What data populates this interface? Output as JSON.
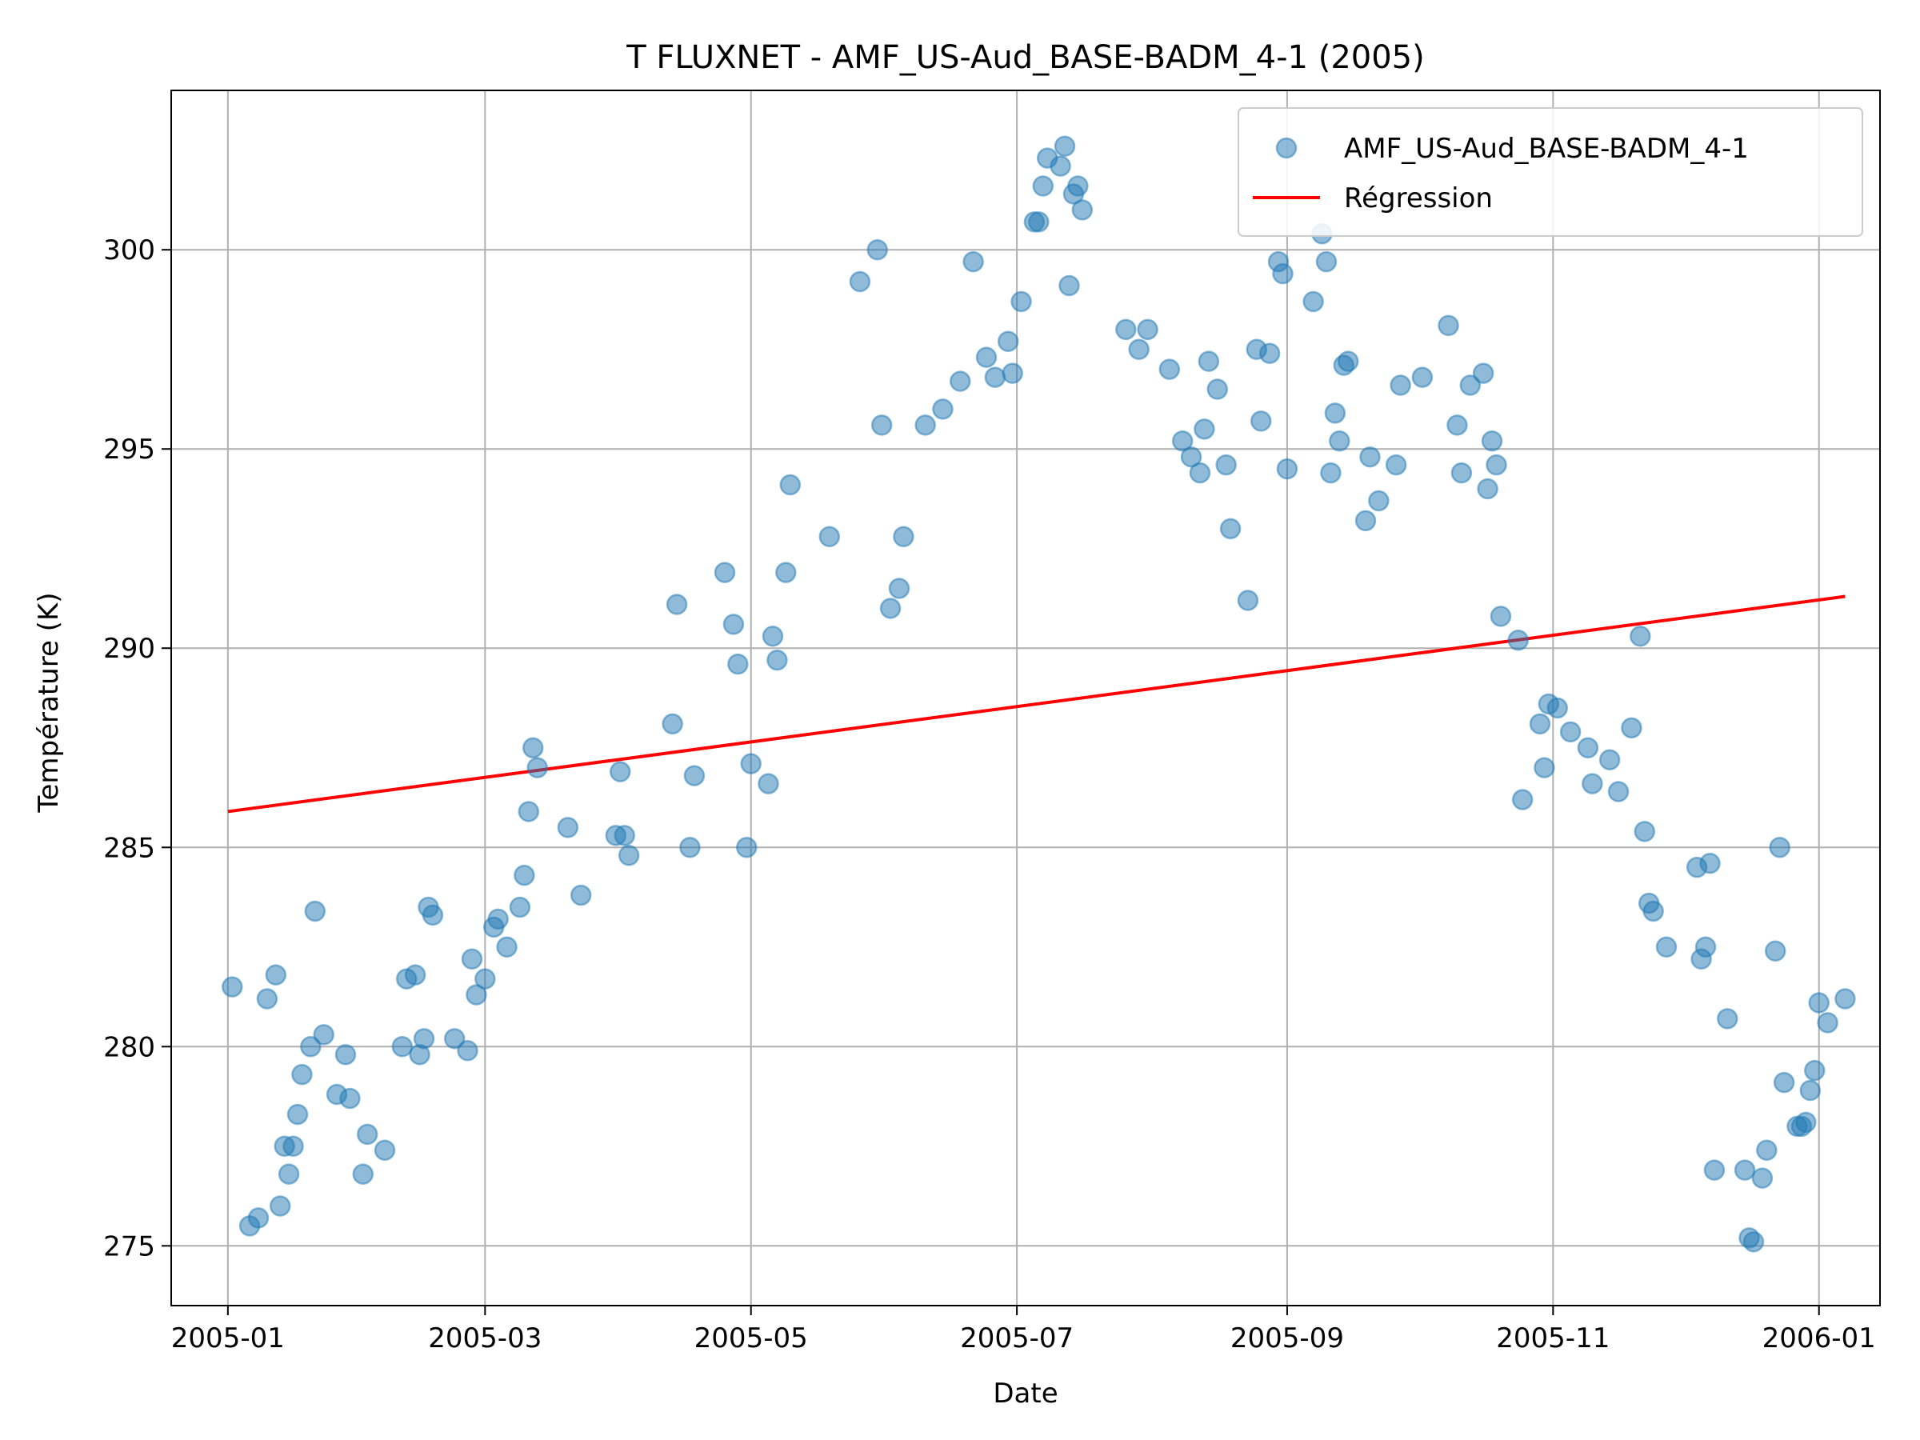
{
  "chart_data": {
    "type": "scatter",
    "title": "T FLUXNET - AMF_US-Aud_BASE-BADM_4-1 (2005)",
    "xlabel": "Date",
    "ylabel": "Température (K)",
    "x_type": "date",
    "xlim": [
      "2004-12-19",
      "2006-01-15"
    ],
    "ylim": [
      273.5,
      304.0
    ],
    "x_ticks": [
      {
        "date": "2005-01-01",
        "label": "2005-01"
      },
      {
        "date": "2005-03-01",
        "label": "2005-03"
      },
      {
        "date": "2005-05-01",
        "label": "2005-05"
      },
      {
        "date": "2005-07-01",
        "label": "2005-07"
      },
      {
        "date": "2005-09-01",
        "label": "2005-09"
      },
      {
        "date": "2005-11-01",
        "label": "2005-11"
      },
      {
        "date": "2006-01-01",
        "label": "2006-01"
      }
    ],
    "y_ticks": [
      275,
      280,
      285,
      290,
      295,
      300
    ],
    "grid": true,
    "legend_position": "top-right",
    "series": [
      {
        "name": "AMF_US-Aud_BASE-BADM_4-1",
        "kind": "scatter",
        "color": "#1f77b4",
        "points": [
          [
            "2005-01-02",
            281.5
          ],
          [
            "2005-01-06",
            275.5
          ],
          [
            "2005-01-08",
            275.7
          ],
          [
            "2005-01-10",
            281.2
          ],
          [
            "2005-01-12",
            281.8
          ],
          [
            "2005-01-13",
            276.0
          ],
          [
            "2005-01-14",
            277.5
          ],
          [
            "2005-01-15",
            276.8
          ],
          [
            "2005-01-16",
            277.5
          ],
          [
            "2005-01-17",
            278.3
          ],
          [
            "2005-01-18",
            279.3
          ],
          [
            "2005-01-20",
            280.0
          ],
          [
            "2005-01-21",
            283.4
          ],
          [
            "2005-01-23",
            280.3
          ],
          [
            "2005-01-26",
            278.8
          ],
          [
            "2005-01-28",
            279.8
          ],
          [
            "2005-01-29",
            278.7
          ],
          [
            "2005-02-01",
            276.8
          ],
          [
            "2005-02-02",
            277.8
          ],
          [
            "2005-02-06",
            277.4
          ],
          [
            "2005-02-10",
            280.0
          ],
          [
            "2005-02-11",
            281.7
          ],
          [
            "2005-02-13",
            281.8
          ],
          [
            "2005-02-14",
            279.8
          ],
          [
            "2005-02-15",
            280.2
          ],
          [
            "2005-02-16",
            283.5
          ],
          [
            "2005-02-17",
            283.3
          ],
          [
            "2005-02-22",
            280.2
          ],
          [
            "2005-02-25",
            279.9
          ],
          [
            "2005-02-26",
            282.2
          ],
          [
            "2005-02-27",
            281.3
          ],
          [
            "2005-03-01",
            281.7
          ],
          [
            "2005-03-03",
            283.0
          ],
          [
            "2005-03-04",
            283.2
          ],
          [
            "2005-03-06",
            282.5
          ],
          [
            "2005-03-09",
            283.5
          ],
          [
            "2005-03-10",
            284.3
          ],
          [
            "2005-03-11",
            285.9
          ],
          [
            "2005-03-12",
            287.5
          ],
          [
            "2005-03-13",
            287.0
          ],
          [
            "2005-03-20",
            285.5
          ],
          [
            "2005-03-23",
            283.8
          ],
          [
            "2005-03-31",
            285.3
          ],
          [
            "2005-04-01",
            286.9
          ],
          [
            "2005-04-02",
            285.3
          ],
          [
            "2005-04-03",
            284.8
          ],
          [
            "2005-04-13",
            288.1
          ],
          [
            "2005-04-14",
            291.1
          ],
          [
            "2005-04-17",
            285.0
          ],
          [
            "2005-04-18",
            286.8
          ],
          [
            "2005-04-25",
            291.9
          ],
          [
            "2005-04-27",
            290.6
          ],
          [
            "2005-04-28",
            289.6
          ],
          [
            "2005-04-30",
            285.0
          ],
          [
            "2005-05-01",
            287.1
          ],
          [
            "2005-05-05",
            286.6
          ],
          [
            "2005-05-06",
            290.3
          ],
          [
            "2005-05-07",
            289.7
          ],
          [
            "2005-05-09",
            291.9
          ],
          [
            "2005-05-10",
            294.1
          ],
          [
            "2005-05-19",
            292.8
          ],
          [
            "2005-05-26",
            299.2
          ],
          [
            "2005-05-30",
            300.0
          ],
          [
            "2005-05-31",
            295.6
          ],
          [
            "2005-06-02",
            291.0
          ],
          [
            "2005-06-04",
            291.5
          ],
          [
            "2005-06-05",
            292.8
          ],
          [
            "2005-06-10",
            295.6
          ],
          [
            "2005-06-14",
            296.0
          ],
          [
            "2005-06-18",
            296.7
          ],
          [
            "2005-06-21",
            299.7
          ],
          [
            "2005-06-24",
            297.3
          ],
          [
            "2005-06-26",
            296.8
          ],
          [
            "2005-06-29",
            297.7
          ],
          [
            "2005-06-30",
            296.9
          ],
          [
            "2005-07-02",
            298.7
          ],
          [
            "2005-07-05",
            300.7
          ],
          [
            "2005-07-06",
            300.7
          ],
          [
            "2005-07-07",
            301.6
          ],
          [
            "2005-07-08",
            302.3
          ],
          [
            "2005-07-11",
            302.1
          ],
          [
            "2005-07-12",
            302.6
          ],
          [
            "2005-07-13",
            299.1
          ],
          [
            "2005-07-14",
            301.4
          ],
          [
            "2005-07-15",
            301.6
          ],
          [
            "2005-07-16",
            301.0
          ],
          [
            "2005-07-26",
            298.0
          ],
          [
            "2005-07-29",
            297.5
          ],
          [
            "2005-07-31",
            298.0
          ],
          [
            "2005-08-05",
            297.0
          ],
          [
            "2005-08-08",
            295.2
          ],
          [
            "2005-08-10",
            294.8
          ],
          [
            "2005-08-12",
            294.4
          ],
          [
            "2005-08-13",
            295.5
          ],
          [
            "2005-08-14",
            297.2
          ],
          [
            "2005-08-16",
            296.5
          ],
          [
            "2005-08-18",
            294.6
          ],
          [
            "2005-08-19",
            293.0
          ],
          [
            "2005-08-23",
            291.2
          ],
          [
            "2005-08-25",
            297.5
          ],
          [
            "2005-08-26",
            295.7
          ],
          [
            "2005-08-28",
            297.4
          ],
          [
            "2005-08-30",
            299.7
          ],
          [
            "2005-08-31",
            299.4
          ],
          [
            "2005-09-01",
            294.5
          ],
          [
            "2005-09-07",
            298.7
          ],
          [
            "2005-09-09",
            300.4
          ],
          [
            "2005-09-10",
            299.7
          ],
          [
            "2005-09-11",
            294.4
          ],
          [
            "2005-09-12",
            295.9
          ],
          [
            "2005-09-13",
            295.2
          ],
          [
            "2005-09-14",
            297.1
          ],
          [
            "2005-09-15",
            297.2
          ],
          [
            "2005-09-19",
            293.2
          ],
          [
            "2005-09-20",
            294.8
          ],
          [
            "2005-09-22",
            293.7
          ],
          [
            "2005-09-26",
            294.6
          ],
          [
            "2005-09-27",
            296.6
          ],
          [
            "2005-10-02",
            296.8
          ],
          [
            "2005-10-08",
            298.1
          ],
          [
            "2005-10-10",
            295.6
          ],
          [
            "2005-10-11",
            294.4
          ],
          [
            "2005-10-13",
            296.6
          ],
          [
            "2005-10-16",
            296.9
          ],
          [
            "2005-10-17",
            294.0
          ],
          [
            "2005-10-18",
            295.2
          ],
          [
            "2005-10-19",
            294.6
          ],
          [
            "2005-10-20",
            290.8
          ],
          [
            "2005-10-24",
            290.2
          ],
          [
            "2005-10-25",
            286.2
          ],
          [
            "2005-10-29",
            288.1
          ],
          [
            "2005-10-30",
            287.0
          ],
          [
            "2005-10-31",
            288.6
          ],
          [
            "2005-11-02",
            288.5
          ],
          [
            "2005-11-05",
            287.9
          ],
          [
            "2005-11-09",
            287.5
          ],
          [
            "2005-11-10",
            286.6
          ],
          [
            "2005-11-14",
            287.2
          ],
          [
            "2005-11-16",
            286.4
          ],
          [
            "2005-11-19",
            288.0
          ],
          [
            "2005-11-21",
            290.3
          ],
          [
            "2005-11-22",
            285.4
          ],
          [
            "2005-11-23",
            283.6
          ],
          [
            "2005-11-24",
            283.4
          ],
          [
            "2005-11-27",
            282.5
          ],
          [
            "2005-12-04",
            284.5
          ],
          [
            "2005-12-05",
            282.2
          ],
          [
            "2005-12-06",
            282.5
          ],
          [
            "2005-12-07",
            284.6
          ],
          [
            "2005-12-08",
            276.9
          ],
          [
            "2005-12-11",
            280.7
          ],
          [
            "2005-12-15",
            276.9
          ],
          [
            "2005-12-16",
            275.2
          ],
          [
            "2005-12-17",
            275.1
          ],
          [
            "2005-12-19",
            276.7
          ],
          [
            "2005-12-20",
            277.4
          ],
          [
            "2005-12-22",
            282.4
          ],
          [
            "2005-12-23",
            285.0
          ],
          [
            "2005-12-24",
            279.1
          ],
          [
            "2005-12-27",
            278.0
          ],
          [
            "2005-12-28",
            278.0
          ],
          [
            "2005-12-29",
            278.1
          ],
          [
            "2005-12-30",
            278.9
          ],
          [
            "2005-12-31",
            279.4
          ],
          [
            "2006-01-01",
            281.1
          ],
          [
            "2006-01-03",
            280.6
          ],
          [
            "2006-01-07",
            281.2
          ]
        ]
      },
      {
        "name": "Régression",
        "kind": "line",
        "color": "#ff0000",
        "points": [
          [
            "2005-01-01",
            285.9
          ],
          [
            "2006-01-07",
            291.3
          ]
        ]
      }
    ]
  }
}
